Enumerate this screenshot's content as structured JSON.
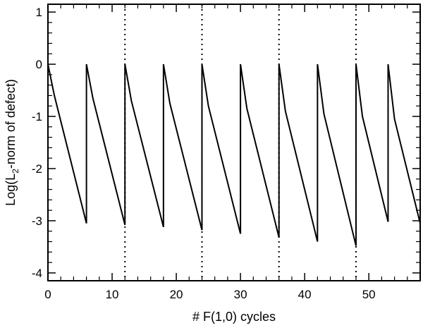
{
  "chart_data": {
    "type": "line",
    "xlabel": "# F(1,0) cycles",
    "ylabel_parts": [
      "Log(L",
      "2",
      "-norm of defect)"
    ],
    "xlim": [
      0,
      58
    ],
    "ylim": [
      -4.15,
      1.15
    ],
    "x_ticks": [
      0,
      10,
      20,
      30,
      40,
      50
    ],
    "x_tick_labels": [
      "0",
      "10",
      "20",
      "30",
      "40",
      "50"
    ],
    "y_ticks": [
      1,
      0,
      -1,
      -2,
      -3,
      -4
    ],
    "y_tick_labels": [
      "1",
      "0",
      "-1",
      "-2",
      "-3",
      "-4"
    ],
    "x_minor_step": 2,
    "y_minor_step": 0.2,
    "vertical_reference_lines": [
      12,
      24,
      36,
      48
    ],
    "series": [
      {
        "x": [
          0,
          1,
          6,
          6,
          7,
          12,
          12,
          13,
          18,
          18,
          19,
          24,
          24,
          25,
          30,
          30,
          31,
          36,
          36,
          37,
          42,
          42,
          43,
          48,
          48,
          49,
          53,
          53,
          54,
          58
        ],
        "y": [
          0,
          -0.6,
          -3.05,
          0,
          -0.65,
          -3.08,
          0,
          -0.7,
          -3.12,
          0,
          -0.75,
          -3.18,
          0,
          -0.8,
          -3.25,
          0,
          -0.85,
          -3.32,
          0,
          -0.9,
          -3.4,
          0,
          -0.95,
          -3.48,
          0,
          -1.0,
          -3.02,
          0,
          -1.05,
          -3.05
        ]
      }
    ],
    "grid": false,
    "legend": "none"
  }
}
